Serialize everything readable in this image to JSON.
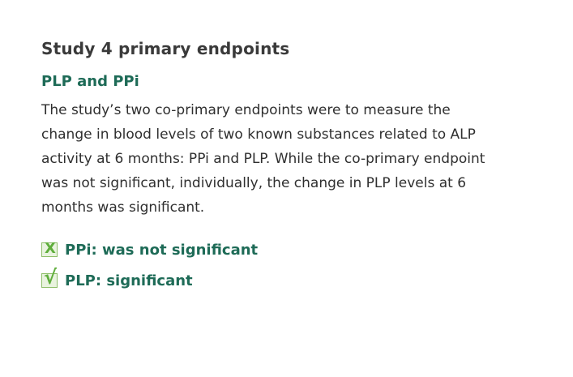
{
  "section": {
    "title": "Study 4 primary endpoints"
  },
  "subheading": "PLP and PPi",
  "body": "The study’s two co-primary endpoints were to measure the change in blood levels of two known substances related to ALP activity at 6 months: PPi and PLP. While the co-primary endpoint was not significant, individually, the change in PLP levels at 6 months was significant.",
  "results": [
    {
      "icon": "x-box-icon",
      "glyph": "X",
      "label": "PPi: was not significant"
    },
    {
      "icon": "check-box-icon",
      "glyph": "√",
      "label": "PLP: significant"
    }
  ],
  "colors": {
    "heading": "#3a3a3a",
    "accent_green": "#1e6b57",
    "icon_green": "#5fae3c"
  }
}
